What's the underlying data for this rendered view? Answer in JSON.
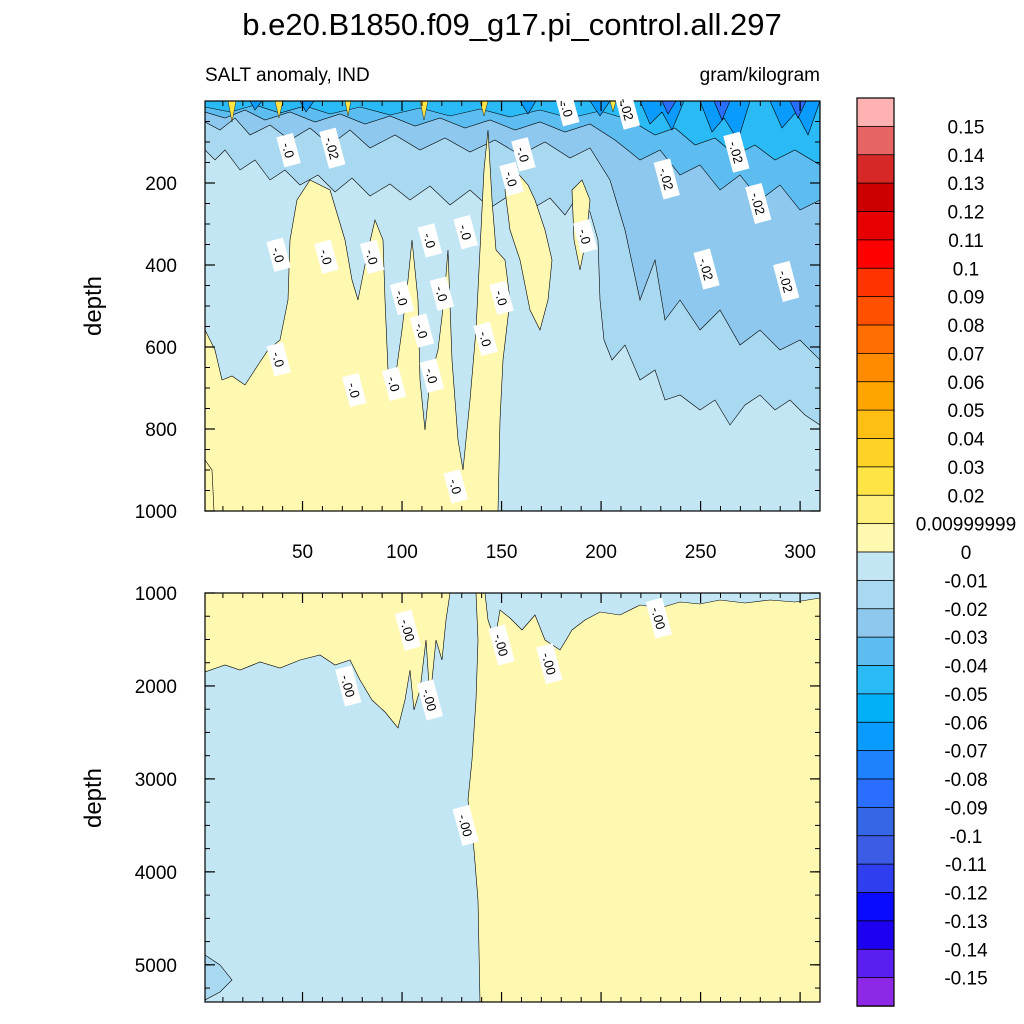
{
  "chart_data": [
    {
      "type": "heatmap",
      "panel": "upper",
      "title": "b.e20.B1850.f09_g17.pi_control.all.297",
      "subtitle_left": "SALT anomaly, IND",
      "subtitle_right": "gram/kilogram",
      "xlabel": "",
      "ylabel": "depth",
      "xlim": [
        1,
        310
      ],
      "ylim": [
        0,
        1000
      ],
      "y_reversed": true,
      "x_ticks": [
        "50",
        "100",
        "150",
        "200",
        "250",
        "300"
      ],
      "y_ticks": [
        "200",
        "400",
        "600",
        "800",
        "1000"
      ],
      "contour_labels": [
        {
          "text": "-.0",
          "x": 43,
          "y": 120
        },
        {
          "text": "-.02",
          "x": 65,
          "y": 115
        },
        {
          "text": "-.0",
          "x": 38,
          "y": 375
        },
        {
          "text": "-.0",
          "x": 62,
          "y": 380
        },
        {
          "text": "-.0",
          "x": 85,
          "y": 380
        },
        {
          "text": "-.0",
          "x": 114,
          "y": 340
        },
        {
          "text": "-.0",
          "x": 132,
          "y": 320
        },
        {
          "text": "-.0",
          "x": 100,
          "y": 480
        },
        {
          "text": "-.0",
          "x": 120,
          "y": 470
        },
        {
          "text": "-.0",
          "x": 150,
          "y": 480
        },
        {
          "text": "-.0",
          "x": 110,
          "y": 560
        },
        {
          "text": "-.0",
          "x": 142,
          "y": 580
        },
        {
          "text": "-.0",
          "x": 38,
          "y": 630
        },
        {
          "text": "-.0",
          "x": 76,
          "y": 705
        },
        {
          "text": "-.0",
          "x": 96,
          "y": 690
        },
        {
          "text": "-.0",
          "x": 115,
          "y": 670
        },
        {
          "text": "-.0",
          "x": 127,
          "y": 940
        },
        {
          "text": "-.0",
          "x": 161,
          "y": 130
        },
        {
          "text": "-.0",
          "x": 155,
          "y": 190
        },
        {
          "text": "-.0",
          "x": 183,
          "y": 20
        },
        {
          "text": "-.02",
          "x": 213,
          "y": 20
        },
        {
          "text": "-.02",
          "x": 233,
          "y": 190
        },
        {
          "text": "-.02",
          "x": 268,
          "y": 125
        },
        {
          "text": "-.02",
          "x": 279,
          "y": 250
        },
        {
          "text": "-.0",
          "x": 192,
          "y": 330
        },
        {
          "text": "-.02",
          "x": 253,
          "y": 410
        },
        {
          "text": "-.02",
          "x": 293,
          "y": 440
        }
      ]
    },
    {
      "type": "heatmap",
      "panel": "lower",
      "xlabel": "",
      "ylabel": "depth",
      "xlim": [
        1,
        310
      ],
      "ylim": [
        1000,
        5400
      ],
      "y_reversed": true,
      "y_ticks": [
        "1000",
        "2000",
        "3000",
        "4000",
        "5000"
      ],
      "contour_labels": [
        {
          "text": "-.00",
          "x": 103,
          "y": 1400
        },
        {
          "text": "-.00",
          "x": 73,
          "y": 2000
        },
        {
          "text": "-.00",
          "x": 114,
          "y": 2150
        },
        {
          "text": "-.00",
          "x": 150,
          "y": 1560
        },
        {
          "text": "-.00",
          "x": 174,
          "y": 1760
        },
        {
          "text": "-.00",
          "x": 229,
          "y": 1270
        },
        {
          "text": "-.00",
          "x": 132,
          "y": 3500
        }
      ]
    }
  ],
  "colorbar": {
    "labels": [
      "0.15",
      "0.14",
      "0.13",
      "0.12",
      "0.11",
      "0.1",
      "0.09",
      "0.08",
      "0.07",
      "0.06",
      "0.05",
      "0.04",
      "0.03",
      "0.02",
      "0.00999999",
      "0",
      "-0.01",
      "-0.02",
      "-0.03",
      "-0.04",
      "-0.05",
      "-0.06",
      "-0.07",
      "-0.08",
      "-0.09",
      "-0.1",
      "-0.11",
      "-0.12",
      "-0.13",
      "-0.14",
      "-0.15"
    ],
    "colors": [
      "#ffb2b2",
      "#e66464",
      "#d72828",
      "#cc0000",
      "#e60000",
      "#ff0000",
      "#ff3300",
      "#ff5000",
      "#ff6e00",
      "#ff8c00",
      "#ffa500",
      "#ffbe14",
      "#ffd228",
      "#ffe446",
      "#fff07d",
      "#fff8b0",
      "#c3e6f5",
      "#a9d9f0",
      "#8ec8ee",
      "#5ebdf0",
      "#2abaf5",
      "#00b1f7",
      "#0a9bff",
      "#1e82ff",
      "#2a6eff",
      "#3466e6",
      "#3c5ce6",
      "#2f3eef",
      "#0a0aff",
      "#1e00f0",
      "#5a1ef0",
      "#8c28e6"
    ]
  },
  "colors": {
    "positive_fill": "#fff8b0",
    "zero_to_minus_001": "#c3e6f5",
    "minus_002": "#a9d9f0",
    "minus_003": "#8ec8ee",
    "minus_004": "#5ebdf0",
    "minus_005": "#2abaf5",
    "minus_007": "#0a9bff",
    "minus_009": "#2a6eff",
    "outline": "#000000"
  }
}
